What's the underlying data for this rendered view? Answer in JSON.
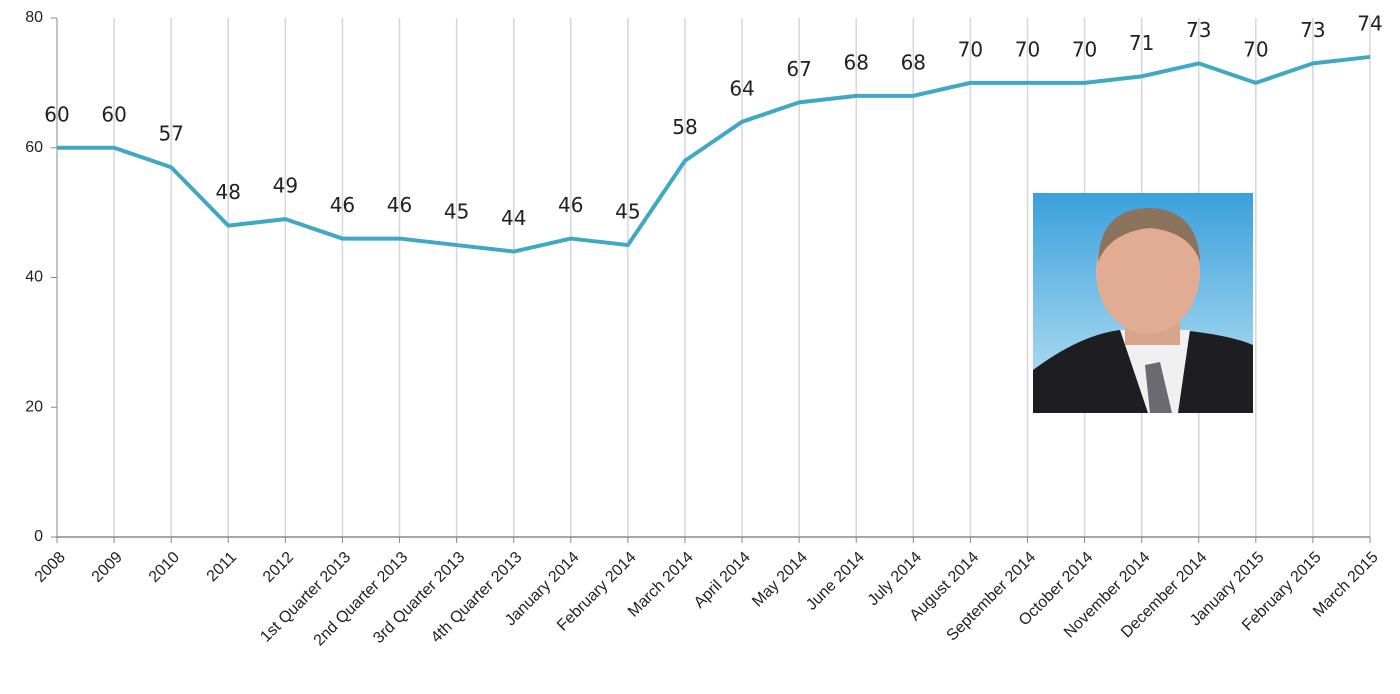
{
  "chart_data": {
    "type": "line",
    "categories": [
      "2008",
      "2009",
      "2010",
      "2011",
      "2012",
      "1st Quarter 2013",
      "2nd Quarter 2013",
      "3rd Quarter 2013",
      "4th Quarter 2013",
      "January 2014",
      "February 2014",
      "March 2014",
      "April 2014",
      "May 2014",
      "June 2014",
      "July 2014",
      "August 2014",
      "September 2014",
      "October 2014",
      "November 2014",
      "December 2014",
      "January 2015",
      "February 2015",
      "March 2015"
    ],
    "values": [
      60,
      60,
      57,
      48,
      49,
      46,
      46,
      45,
      44,
      46,
      45,
      58,
      64,
      67,
      68,
      68,
      70,
      70,
      70,
      71,
      73,
      70,
      73,
      74
    ],
    "color": "#41a8c4",
    "ylim": [
      0,
      80
    ],
    "yticks": [
      0,
      20,
      40,
      60,
      80
    ],
    "grid": true
  }
}
